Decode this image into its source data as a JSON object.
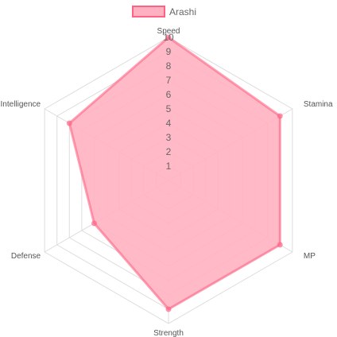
{
  "chart_data": {
    "type": "radar",
    "axes": [
      "Speed",
      "Stamina",
      "MP",
      "Strength",
      "Defense",
      "Intelligence"
    ],
    "series": [
      {
        "name": "Arashi",
        "values": [
          10,
          9,
          9,
          9,
          6,
          8
        ],
        "fill_color": "#ffb1c1",
        "line_color": "#ff6384",
        "point_color": "#ff6384"
      }
    ],
    "r_range": [
      0,
      10
    ],
    "ticks": [
      "1",
      "2",
      "3",
      "4",
      "5",
      "6",
      "7",
      "8",
      "9",
      "10"
    ],
    "grid": true,
    "legend_position": "top",
    "grid_color": "#dddddd"
  }
}
